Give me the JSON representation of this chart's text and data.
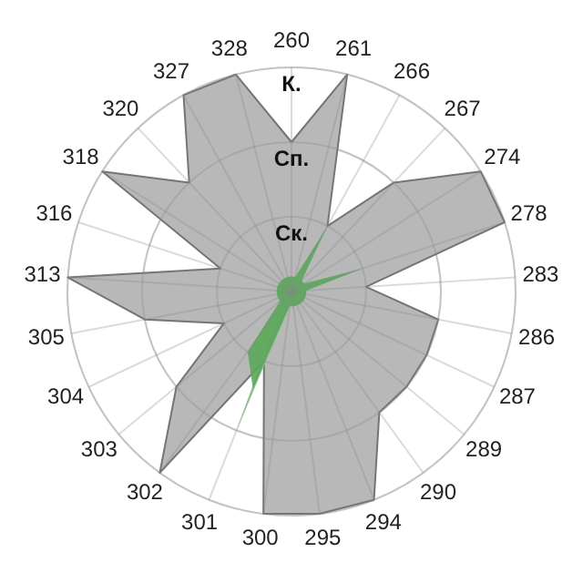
{
  "chart_data": {
    "type": "radar",
    "categories": [
      "260",
      "261",
      "266",
      "267",
      "274",
      "278",
      "283",
      "286",
      "287",
      "289",
      "290",
      "294",
      "295",
      "300",
      "301",
      "302",
      "303",
      "304",
      "305",
      "313",
      "316",
      "318",
      "320",
      "327",
      "328"
    ],
    "ylim": [
      0,
      3
    ],
    "yticks": [
      {
        "value": 1,
        "label": "Ск."
      },
      {
        "value": 2,
        "label": "Сп."
      },
      {
        "value": 3,
        "label": "К."
      }
    ],
    "grid": true,
    "series": [
      {
        "color": "#b4b4b4",
        "values": [
          2,
          3,
          1,
          2,
          3,
          3,
          1,
          2,
          2,
          2,
          2,
          3,
          3,
          3,
          1,
          3,
          2,
          1,
          2,
          3,
          1,
          3,
          2,
          3,
          3
        ]
      },
      {
        "color": "#80d080",
        "values": [
          0.2,
          0.2,
          0.2,
          0.2,
          0.2,
          0.2,
          0.2,
          0.2,
          0.2,
          0.2,
          0.2,
          0.2,
          0.2,
          0.2,
          2,
          0.2,
          0.2,
          0.2,
          0.2,
          0.2,
          0.2,
          0.2,
          0.2,
          0.2,
          0.2
        ]
      },
      {
        "color": "#5aa85a",
        "values": [
          0.2,
          0.2,
          1,
          0.2,
          0.2,
          1,
          0.2,
          0.2,
          0.2,
          0.2,
          0.2,
          0.2,
          0.2,
          0.2,
          1.4,
          1,
          0.2,
          0.2,
          0.2,
          0.2,
          0.2,
          0.2,
          0.2,
          0.2,
          0.2
        ]
      }
    ]
  }
}
